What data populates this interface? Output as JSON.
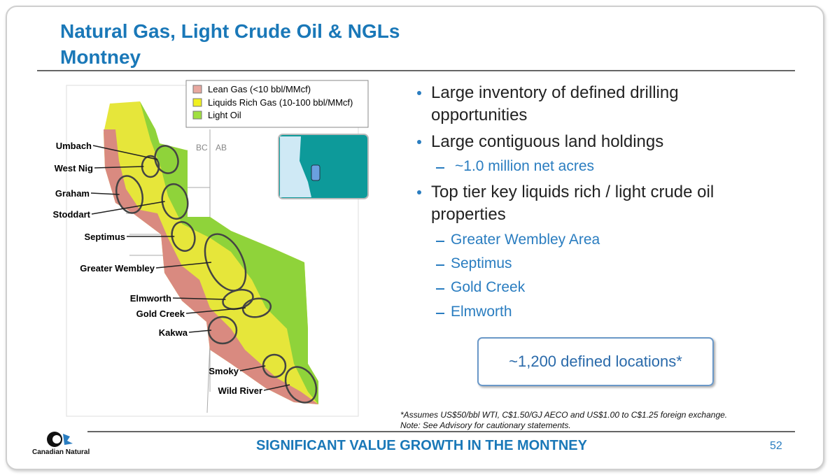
{
  "title": {
    "line1": "Natural Gas, Light Crude Oil & NGLs",
    "line2": "Montney"
  },
  "map": {
    "legend": [
      "Lean Gas (<10 bbl/MMcf)",
      "Liquids Rich Gas (10-100 bbl/MMcf)",
      "Light Oil"
    ],
    "provinces": [
      "BC",
      "AB"
    ],
    "areas": [
      "Umbach",
      "West Nig",
      "Graham",
      "Stoddart",
      "Septimus",
      "Greater Wembley",
      "Elmworth",
      "Gold Creek",
      "Kakwa",
      "Smoky",
      "Wild River"
    ]
  },
  "bullets": [
    {
      "text": "Large inventory of defined drilling opportunities",
      "subs": []
    },
    {
      "text": "Large contiguous land holdings",
      "subs": [
        "~1.0 million net acres"
      ]
    },
    {
      "text": "Top tier key liquids rich / light crude oil properties",
      "subs": [
        "Greater Wembley Area",
        "Septimus",
        "Gold Creek",
        "Elmworth"
      ]
    }
  ],
  "callout": "~1,200 defined locations*",
  "footnotes": [
    "*Assumes US$50/bbl WTI, C$1.50/GJ AECO and US$1.00 to C$1.25 foreign exchange.",
    "Note: See Advisory for cautionary statements."
  ],
  "logo": "Canadian Natural",
  "footer": "SIGNIFICANT VALUE GROWTH IN THE MONTNEY",
  "page_number": 52
}
